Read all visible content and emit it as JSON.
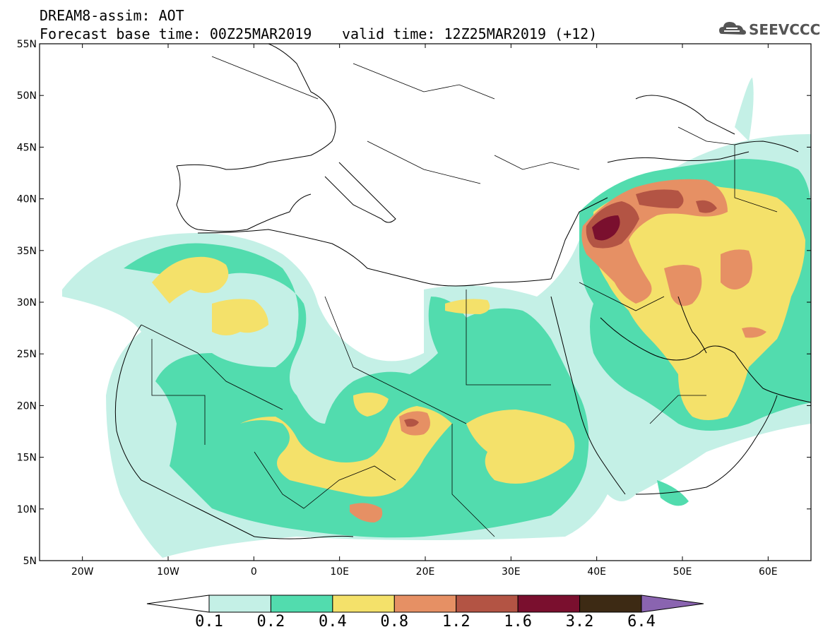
{
  "header": {
    "line1": "DREAM8-assim: AOT",
    "line2": "Forecast base time: 00Z25MAR2019",
    "valid": "valid time: 12Z25MAR2019 (+12)",
    "logo": "SEEVCCC"
  },
  "axes": {
    "lat_labels": [
      "55N",
      "50N",
      "45N",
      "40N",
      "35N",
      "30N",
      "25N",
      "20N",
      "15N",
      "10N",
      "5N"
    ],
    "lon_labels": [
      "20W",
      "10W",
      "0",
      "10E",
      "20E",
      "30E",
      "40E",
      "50E",
      "60E"
    ]
  },
  "colorbar": {
    "levels": [
      "0.1",
      "0.2",
      "0.4",
      "0.8",
      "1.2",
      "1.6",
      "3.2",
      "6.4"
    ],
    "colors": [
      "#ffffff",
      "#c4f0e6",
      "#52dcae",
      "#f4e16a",
      "#e69064",
      "#b35444",
      "#7a0f2e",
      "#3d2a14",
      "#8a64b0"
    ]
  },
  "chart_data": {
    "type": "heatmap",
    "variable": "AOT",
    "lon_range": [
      -25,
      65
    ],
    "lat_range": [
      5,
      55
    ],
    "regions": [
      {
        "value_class": "0.1-0.2",
        "lon": 10,
        "lat": 23
      },
      {
        "value_class": "0.2-0.4",
        "lon": 0,
        "lat": 19
      },
      {
        "value_class": "0.4-0.8",
        "lon": 10,
        "lat": 13
      },
      {
        "value_class": "0.8-1.2",
        "lon": 19,
        "lat": 18
      },
      {
        "value_class": "1.2-1.6",
        "lon": 44,
        "lat": 38
      },
      {
        "value_class": "1.6-3.2",
        "lon": 40,
        "lat": 36
      }
    ]
  }
}
